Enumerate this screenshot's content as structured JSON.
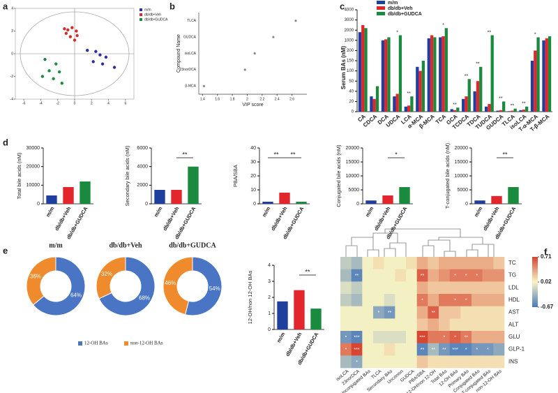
{
  "chart_data": [
    {
      "type": "scatter",
      "label": "a",
      "xlim": [
        -7,
        7
      ],
      "ylim": [
        -4,
        4
      ],
      "xticks": [
        -6,
        -4,
        -2,
        0,
        2,
        4,
        6
      ],
      "yticks": [
        -4,
        -2,
        0,
        2,
        4
      ],
      "series": [
        {
          "name": "m/m",
          "color": "#2b2fa0",
          "x": [
            1.5,
            2.5,
            3,
            3.7,
            2.2,
            3.3,
            4.7
          ],
          "y": [
            0.3,
            0.2,
            -0.1,
            -0.3,
            -0.7,
            -0.9,
            -1.2
          ]
        },
        {
          "name": "db/db+Veh",
          "color": "#d42b2b",
          "x": [
            -1.2,
            -0.8,
            -0.3,
            0.2,
            -0.5,
            0.3,
            -1,
            0
          ],
          "y": [
            2.2,
            2.1,
            2.3,
            2.0,
            1.5,
            1.6,
            1.8,
            1.2
          ]
        },
        {
          "name": "db/db+GUDCA",
          "color": "#1e8a3e",
          "x": [
            -3.5,
            -2.2,
            -3,
            -1.8,
            -3.8,
            -2.5,
            -1.5
          ],
          "y": [
            -0.5,
            -0.9,
            -1.5,
            -1.6,
            -2,
            -2.2,
            -2.6
          ]
        }
      ]
    },
    {
      "type": "dot",
      "label": "b",
      "xlabel": "VIP score",
      "ylabel": "Compound Name",
      "categories": [
        "TLCA",
        "GUDCA",
        "isoLCA",
        "23norDCA",
        "β-MCA"
      ],
      "values": [
        2.65,
        2.35,
        2.1,
        1.97,
        1.42
      ],
      "xlim": [
        1.35,
        2.8
      ],
      "xticks": [
        1.4,
        1.6,
        1.8,
        2.0,
        2.2,
        2.4,
        2.6
      ],
      "color": "#888888"
    },
    {
      "type": "grouped-bar",
      "label": "c",
      "ylabel": "Serum BAs (nM)",
      "scale": "broken",
      "categories": [
        "CA",
        "CDCA",
        "DCA",
        "UDCA",
        "LCA",
        "α-MCA",
        "β-MCA",
        "TCA",
        "GCA",
        "TCDCA",
        "TDCA",
        "TUDCA",
        "GUDCA",
        "TLCA",
        "isoLCA",
        "T-α-MCA",
        "T-β-MCA"
      ],
      "series": [
        {
          "name": "m/m",
          "color": "#1f3f9f",
          "values": [
            1800,
            30,
            1000,
            30,
            10,
            120,
            1200,
            1300,
            5,
            25,
            40,
            10,
            2,
            1,
            3,
            150,
            1000
          ]
        },
        {
          "name": "db/db+Veh",
          "color": "#e3262b",
          "values": [
            2500,
            25,
            1100,
            35,
            12,
            100,
            1500,
            1400,
            3,
            30,
            50,
            15,
            3,
            2,
            4,
            200,
            1200
          ]
        },
        {
          "name": "db/db+GUDCA",
          "color": "#1a8a3f",
          "values": [
            2200,
            45,
            1300,
            1500,
            30,
            150,
            1300,
            2200,
            8,
            60,
            120,
            1500,
            20,
            6,
            10,
            1300,
            1400
          ]
        }
      ],
      "ylim": [
        0,
        4000
      ],
      "yticks": [
        0,
        20,
        40,
        50,
        100,
        150,
        200,
        1000,
        2000,
        3000,
        4000
      ],
      "annotations": [
        "*",
        "**",
        "*",
        "**",
        "**",
        "**",
        "**",
        "**",
        "**",
        "**",
        "*"
      ]
    },
    {
      "type": "bar",
      "label": "d",
      "ylabel": "Total bile acids (nM)",
      "categories": [
        "m/m",
        "db/db+Veh",
        "db/db+GUDCA"
      ],
      "values": [
        4500,
        9000,
        12000
      ],
      "colors": [
        "#1f3f9f",
        "#e3262b",
        "#1a8a3f"
      ],
      "ylim": [
        0,
        30000
      ],
      "yticks": [
        0,
        10000,
        20000,
        30000
      ]
    },
    {
      "type": "bar",
      "ylabel": "Secondary bile acids (nM)",
      "categories": [
        "m/m",
        "db/db+Veh",
        "db/db+GUDCA"
      ],
      "values": [
        1500,
        1500,
        4000
      ],
      "colors": [
        "#1f3f9f",
        "#e3262b",
        "#1a8a3f"
      ],
      "ylim": [
        0,
        6000
      ],
      "yticks": [
        0,
        2000,
        4000,
        6000
      ],
      "annotations": [
        "**"
      ]
    },
    {
      "type": "bar",
      "ylabel": "PBA/SBA",
      "categories": [
        "m/m",
        "db/db+Veh",
        "db/db+GUDCA"
      ],
      "values": [
        1.5,
        8,
        1.5
      ],
      "colors": [
        "#1f3f9f",
        "#e3262b",
        "#1a8a3f"
      ],
      "ylim": [
        0,
        40
      ],
      "yticks": [
        0,
        10,
        20,
        30,
        40
      ],
      "annotations": [
        "**",
        "**"
      ]
    },
    {
      "type": "bar",
      "ylabel": "Conjugated bile acids (nM)",
      "categories": [
        "m/m",
        "db/db+Veh",
        "db/db+GUDCA"
      ],
      "values": [
        1200,
        3000,
        6000
      ],
      "colors": [
        "#1f3f9f",
        "#e3262b",
        "#1a8a3f"
      ],
      "ylim": [
        0,
        20000
      ],
      "yticks": [
        0,
        5000,
        10000,
        15000,
        20000
      ],
      "annotations": [
        "*"
      ]
    },
    {
      "type": "bar",
      "ylabel": "T-conjugated bile acids (nM)",
      "categories": [
        "m/m",
        "db/db+Veh",
        "db/db+GUDCA"
      ],
      "values": [
        1200,
        2800,
        6000
      ],
      "colors": [
        "#1f3f9f",
        "#e3262b",
        "#1a8a3f"
      ],
      "ylim": [
        0,
        20000
      ],
      "yticks": [
        0,
        5000,
        10000,
        15000,
        20000
      ],
      "annotations": [
        "**"
      ]
    },
    {
      "type": "donut",
      "label": "e",
      "legend": [
        "12-OH BAs",
        "non-12-OH BAs"
      ],
      "colors": [
        "#4a74c4",
        "#ef8b2c"
      ],
      "charts": [
        {
          "title": "m/m",
          "values": [
            64,
            36
          ],
          "value_labels": [
            "64%",
            "36%"
          ]
        },
        {
          "title": "db/db+Veh",
          "values": [
            68,
            32
          ],
          "value_labels": [
            "68%",
            "32%"
          ]
        },
        {
          "title": "db/db+GUDCA",
          "values": [
            54,
            46
          ],
          "value_labels": [
            "54%",
            "46%"
          ]
        }
      ]
    },
    {
      "type": "bar",
      "ylabel": "12-OH/non 12-OH BAs",
      "categories": [
        "m/m",
        "db/db+Veh",
        "db/db+GUDCA"
      ],
      "values": [
        1.75,
        2.45,
        1.3
      ],
      "colors": [
        "#1f3f9f",
        "#e3262b",
        "#1a8a3f"
      ],
      "ylim": [
        0,
        4
      ],
      "yticks": [
        0,
        1,
        2,
        3,
        4
      ],
      "annotations": [
        "**"
      ]
    },
    {
      "type": "heatmap",
      "label": "f",
      "rows": [
        "TC",
        "TG",
        "LDL",
        "HDL",
        "AST",
        "ALT",
        "GLU",
        "GLP-1",
        "INS"
      ],
      "columns": [
        "isoLCA",
        "23norDCA",
        "Unconjugated BAs",
        "TLCA",
        "Secondary BAs",
        "Unconion",
        "GUDCA",
        "PBA/SBA",
        "12-OH/non 12-OH",
        "Total BAs",
        "12-OH BAs",
        "Primary BAs",
        "Conjugated BAs",
        "T-conjugated BAs",
        "non-12-OH BAs"
      ],
      "values": [
        [
          -0.2,
          -0.3,
          0,
          0.1,
          0,
          0,
          0.1,
          0.3,
          0.2,
          0.3,
          0.3,
          0.3,
          0.3,
          0.3,
          0.2
        ],
        [
          -0.3,
          -0.6,
          0,
          0,
          0,
          0.1,
          0,
          0.6,
          0.3,
          0.4,
          0.5,
          0.5,
          0.5,
          0.4,
          0.4
        ],
        [
          -0.1,
          -0.2,
          0,
          0,
          0,
          0,
          0,
          0.3,
          0.2,
          0.2,
          0.2,
          0.2,
          0.2,
          0.2,
          0.2
        ],
        [
          -0.2,
          -0.3,
          0,
          0,
          -0.1,
          0,
          0,
          0.5,
          0.3,
          0.5,
          0.5,
          0.5,
          0.3,
          0.3,
          0.3
        ],
        [
          0,
          0,
          0,
          -0.4,
          -0.5,
          0,
          0,
          0.3,
          0.6,
          0.2,
          0.2,
          0.1,
          0.1,
          0.1,
          0.1
        ],
        [
          0,
          0,
          0,
          0,
          0,
          0,
          0,
          0.2,
          0.3,
          0.2,
          0.1,
          0.1,
          0.1,
          0.1,
          0.1
        ],
        [
          -0.5,
          -0.6,
          0,
          -0.1,
          -0.1,
          -0.1,
          0,
          0.7,
          0.5,
          0.5,
          0.6,
          0.5,
          0.3,
          0.3,
          0.3
        ],
        [
          0.5,
          0.7,
          0,
          0,
          0.1,
          0,
          0,
          -0.6,
          -0.3,
          -0.5,
          -0.6,
          -0.6,
          -0.5,
          -0.5,
          -0.4
        ],
        [
          -0.3,
          -0.4,
          0,
          0,
          0,
          0,
          0,
          0.2,
          0.1,
          0.1,
          0.1,
          0.1,
          0.1,
          0.1,
          0.1
        ]
      ],
      "stars": [
        [
          null,
          null,
          null,
          null,
          null,
          null,
          null,
          null,
          null,
          null,
          null,
          null,
          null,
          null,
          null
        ],
        [
          null,
          "**",
          null,
          null,
          null,
          null,
          null,
          "**",
          null,
          null,
          "*",
          "*",
          "*",
          null,
          null
        ],
        [
          null,
          null,
          null,
          null,
          null,
          null,
          null,
          null,
          null,
          null,
          null,
          null,
          null,
          null,
          null
        ],
        [
          null,
          null,
          null,
          null,
          null,
          null,
          null,
          "*",
          null,
          null,
          "*",
          "*",
          null,
          null,
          null
        ],
        [
          null,
          null,
          null,
          "*",
          "**",
          null,
          null,
          null,
          "**",
          null,
          null,
          null,
          null,
          null,
          null
        ],
        [
          null,
          null,
          null,
          null,
          null,
          null,
          null,
          null,
          null,
          null,
          null,
          null,
          null,
          null,
          null
        ],
        [
          "*",
          "***",
          null,
          null,
          null,
          null,
          null,
          "***",
          null,
          "*",
          "*",
          "**",
          null,
          null,
          null
        ],
        [
          "*",
          "***",
          null,
          null,
          null,
          null,
          null,
          "**",
          "**",
          "**",
          "***",
          "*",
          "*",
          "*",
          null
        ],
        [
          null,
          "*",
          null,
          null,
          null,
          null,
          null,
          null,
          null,
          null,
          null,
          null,
          null,
          null,
          null
        ]
      ],
      "colorbar_ticks": [
        0.71,
        0.02,
        -0.67
      ],
      "colors": [
        "#d7432f",
        "#f8f4c4",
        "#4a78b8"
      ]
    }
  ]
}
